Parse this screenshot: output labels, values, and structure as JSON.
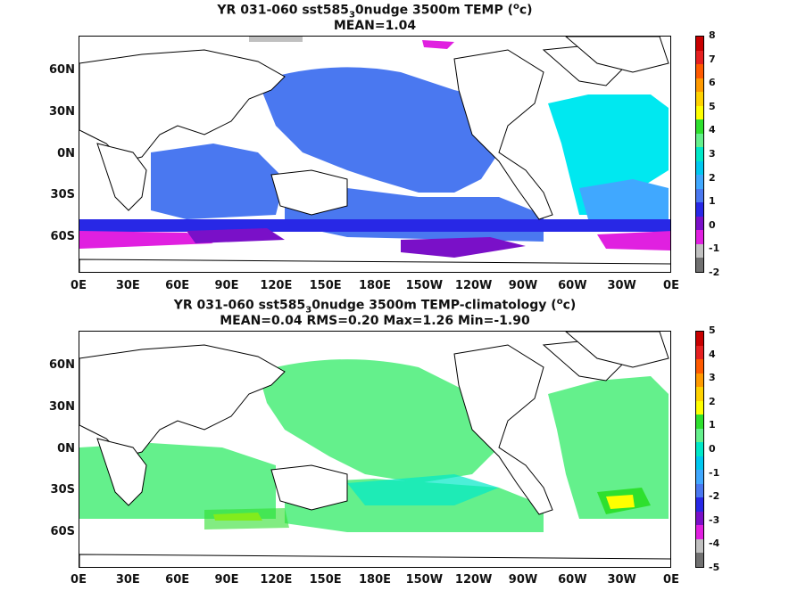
{
  "top": {
    "title_line1_a": "YR 031-060 sst585",
    "title_line1_sub": "3",
    "title_line1_b": "0nudge 3500m TEMP (",
    "title_line1_sup": "o",
    "title_line1_c": "c)",
    "title_line2": "MEAN=1.04",
    "colorbar_ticks": [
      "8",
      "7",
      "6",
      "5",
      "4",
      "3",
      "2",
      "1",
      "0",
      "-1",
      "-2"
    ],
    "colorbar_colors": [
      "#c80000",
      "#e62020",
      "#ff5a00",
      "#ff9a00",
      "#ffd200",
      "#ffff00",
      "#2ee02e",
      "#64f08c",
      "#00e8c8",
      "#00c8f0",
      "#40a8ff",
      "#4a78f0",
      "#2828e6",
      "#7a10c8",
      "#e020e0",
      "#c0c0c0",
      "#707070"
    ]
  },
  "bottom": {
    "title_line1_a": "YR 031-060 sst585",
    "title_line1_sub": "3",
    "title_line1_b": "0nudge 3500m TEMP-climatology (",
    "title_line1_sup": "o",
    "title_line1_c": "c)",
    "title_line2": "MEAN=0.04   RMS=0.20   Max=1.26   Min=-1.90",
    "colorbar_ticks": [
      "5",
      "4",
      "3",
      "2",
      "1",
      "0",
      "-1",
      "-2",
      "-3",
      "-4",
      "-5"
    ],
    "colorbar_colors": [
      "#c80000",
      "#e62020",
      "#ff5a00",
      "#ff9a00",
      "#ffd200",
      "#ffff00",
      "#2ee02e",
      "#64f08c",
      "#00e8c8",
      "#00c8f0",
      "#40a8ff",
      "#4a78f0",
      "#2828e6",
      "#7a10c8",
      "#e020e0",
      "#c0c0c0",
      "#707070"
    ]
  },
  "axes": {
    "lat_labels": [
      "60N",
      "30N",
      "0N",
      "30S",
      "60S"
    ],
    "lon_labels": [
      "0E",
      "30E",
      "60E",
      "90E",
      "120E",
      "150E",
      "180E",
      "150W",
      "120W",
      "90W",
      "60W",
      "30W",
      "0E"
    ]
  }
}
